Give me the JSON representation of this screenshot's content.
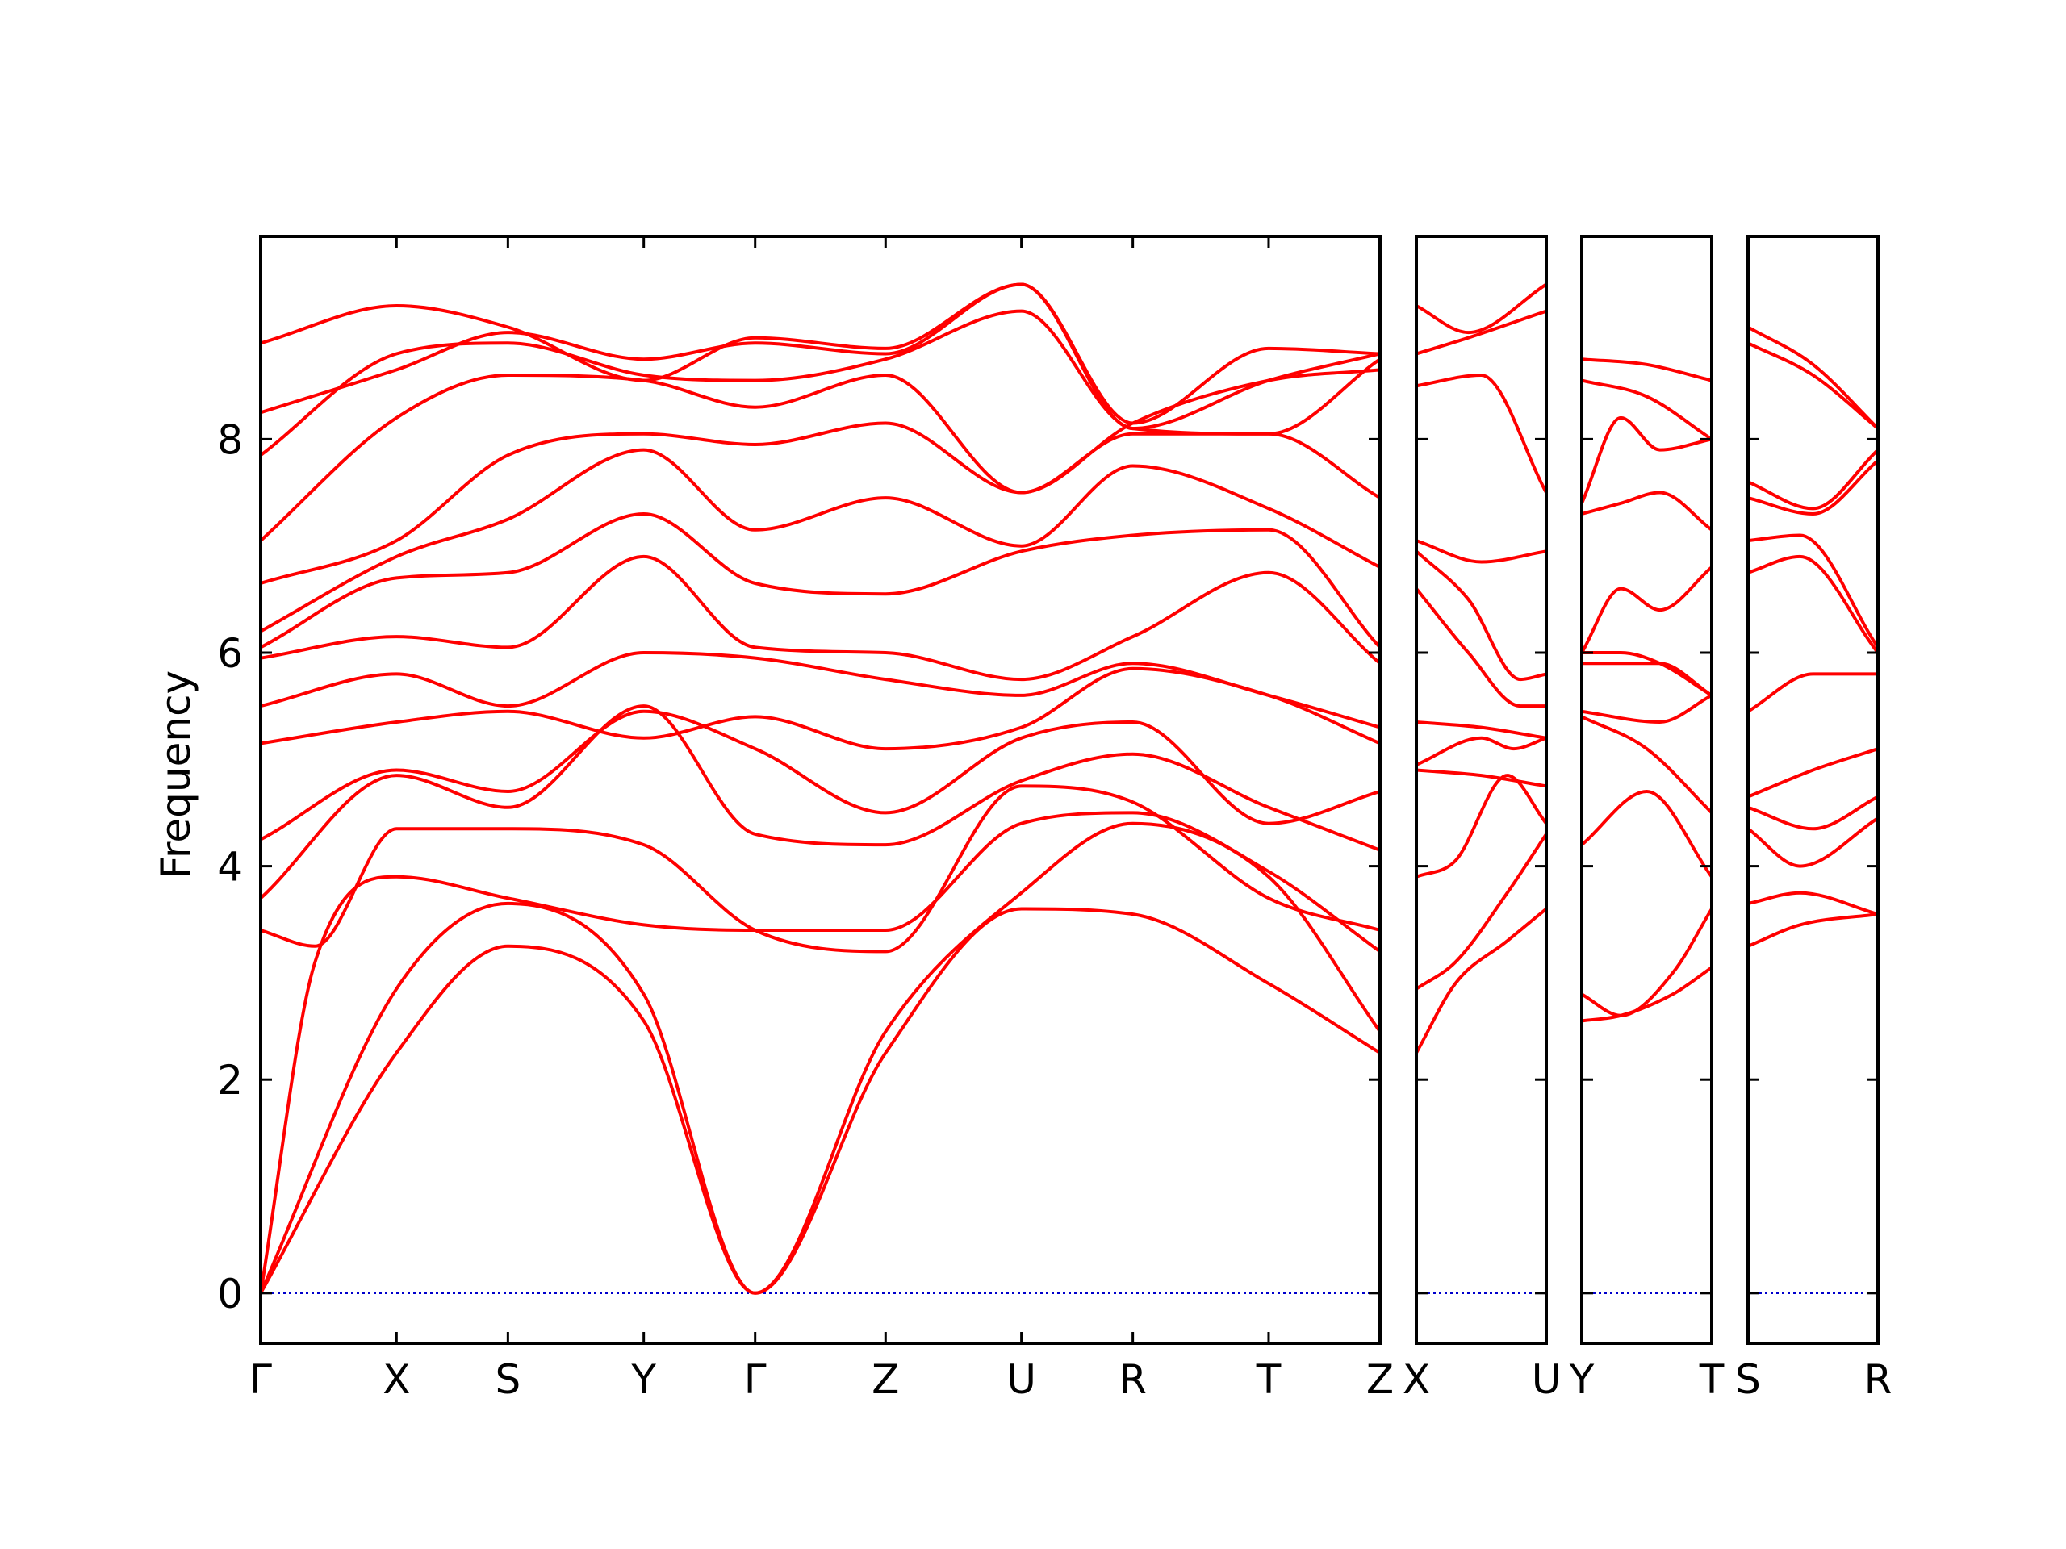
{
  "chart_data": {
    "type": "line",
    "title": "",
    "ylabel": "Frequency",
    "ylim": [
      -0.47,
      9.9
    ],
    "yticks": [
      0,
      2,
      4,
      6,
      8
    ],
    "colors": {
      "bands": "#ff0000",
      "zero_line": "#0000cc",
      "axes": "#000000"
    },
    "grid": false,
    "segments": [
      {
        "x_labels": [
          "Γ",
          "X",
          "S",
          "Y",
          "Γ",
          "Z",
          "U",
          "R",
          "T",
          "Z"
        ],
        "x": [
          0,
          1,
          1.82,
          2.82,
          3.64,
          4.6,
          5.6,
          6.42,
          7.42,
          8.24
        ],
        "series": [
          {
            "x": [
              0,
              1,
              1.82,
              2.82,
              3.64,
              4.6,
              5.6,
              6.42,
              7.42,
              8.24
            ],
            "values": [
              0,
              2.25,
              3.25,
              2.55,
              0,
              2.25,
              3.6,
              3.55,
              2.9,
              2.25
            ]
          },
          {
            "x": [
              0,
              1,
              1.82,
              2.82,
              3.64,
              4.6,
              5.6,
              6.42,
              7.42,
              8.24
            ],
            "values": [
              0,
              2.85,
              3.65,
              2.8,
              0,
              2.45,
              3.75,
              4.4,
              3.9,
              2.45
            ]
          },
          {
            "x": [
              0,
              0.4,
              1,
              1.82,
              2.82,
              3.64,
              4.6,
              5.6,
              6.42,
              7.42,
              8.24
            ],
            "values": [
              0,
              3.1,
              3.9,
              3.7,
              3.45,
              3.4,
              3.4,
              4.4,
              4.5,
              3.95,
              3.2
            ]
          },
          {
            "x": [
              0,
              0.4,
              1,
              1.82,
              2.82,
              3.64,
              4.6,
              5.6,
              6.42,
              7.42,
              8.24
            ],
            "values": [
              3.4,
              3.25,
              4.35,
              4.35,
              4.2,
              3.4,
              3.2,
              4.75,
              4.6,
              3.7,
              3.4
            ]
          },
          {
            "x": [
              0,
              1,
              1.82,
              2.82,
              3.64,
              4.6,
              5.6,
              6.42,
              7.42,
              8.24
            ],
            "values": [
              3.7,
              4.85,
              4.55,
              5.5,
              4.3,
              4.2,
              4.8,
              5.05,
              4.55,
              4.15
            ]
          },
          {
            "x": [
              0,
              1,
              1.82,
              2.82,
              3.64,
              4.6,
              5.6,
              6.42,
              7.42,
              8.24
            ],
            "values": [
              4.25,
              4.9,
              4.7,
              5.45,
              5.1,
              4.5,
              5.2,
              5.35,
              4.4,
              4.7
            ]
          },
          {
            "x": [
              0,
              1,
              1.82,
              2.82,
              3.64,
              4.6,
              5.6,
              6.42,
              7.42,
              8.24
            ],
            "values": [
              5.15,
              5.35,
              5.45,
              5.2,
              5.4,
              5.1,
              5.3,
              5.85,
              5.6,
              5.15
            ]
          },
          {
            "x": [
              0,
              1,
              1.82,
              2.82,
              3.64,
              4.6,
              5.6,
              6.42,
              7.42,
              8.24
            ],
            "values": [
              5.5,
              5.8,
              5.5,
              6.0,
              5.95,
              5.75,
              5.6,
              5.9,
              5.6,
              5.3
            ]
          },
          {
            "x": [
              0,
              1,
              1.82,
              2.82,
              3.64,
              4.6,
              5.6,
              6.42,
              7.42,
              8.24
            ],
            "values": [
              5.95,
              6.15,
              6.05,
              6.9,
              6.05,
              6.0,
              5.75,
              6.15,
              6.75,
              5.9
            ]
          },
          {
            "x": [
              0,
              1,
              1.82,
              2.82,
              3.64,
              4.6,
              5.6,
              6.42,
              7.42,
              8.24
            ],
            "values": [
              6.05,
              6.7,
              6.75,
              7.3,
              6.65,
              6.55,
              6.95,
              7.1,
              7.15,
              6.05
            ]
          },
          {
            "x": [
              0,
              1,
              1.82,
              2.82,
              3.64,
              4.6,
              5.6,
              6.42,
              7.42,
              8.24
            ],
            "values": [
              6.2,
              6.9,
              7.25,
              7.9,
              7.15,
              7.45,
              7.0,
              7.75,
              7.35,
              6.8
            ]
          },
          {
            "x": [
              0,
              1,
              1.82,
              2.82,
              3.64,
              4.6,
              5.6,
              6.42,
              7.42,
              8.24
            ],
            "values": [
              6.65,
              7.05,
              7.85,
              8.05,
              7.95,
              8.15,
              7.5,
              8.05,
              8.05,
              7.45
            ]
          },
          {
            "x": [
              0,
              1,
              1.82,
              2.82,
              3.64,
              4.6,
              5.6,
              6.42,
              7.42,
              8.24
            ],
            "values": [
              7.05,
              8.2,
              8.6,
              8.55,
              8.3,
              8.6,
              7.5,
              8.15,
              8.55,
              8.65
            ]
          },
          {
            "x": [
              0,
              1,
              1.82,
              2.82,
              3.64,
              4.6,
              5.6,
              6.42,
              7.42,
              8.24
            ],
            "values": [
              7.85,
              8.8,
              8.9,
              8.6,
              8.55,
              8.75,
              9.2,
              8.1,
              8.05,
              8.75
            ]
          },
          {
            "x": [
              0,
              1,
              1.82,
              2.82,
              3.64,
              4.6,
              5.6,
              6.42,
              7.42,
              8.24
            ],
            "values": [
              8.25,
              8.65,
              9.0,
              8.75,
              8.9,
              8.8,
              9.45,
              8.1,
              8.55,
              8.8
            ]
          },
          {
            "x": [
              0,
              1,
              1.82,
              2.82,
              3.64,
              4.6,
              5.6,
              6.42,
              7.42,
              8.24
            ],
            "values": [
              8.9,
              9.25,
              9.05,
              8.55,
              8.95,
              8.85,
              9.45,
              8.15,
              8.85,
              8.8
            ]
          }
        ]
      },
      {
        "x_labels": [
          "X",
          "U"
        ],
        "x": [
          0,
          1
        ],
        "series": [
          {
            "x": [
              0,
              0.3,
              0.7,
              1
            ],
            "values": [
              2.25,
              2.9,
              3.3,
              3.6
            ]
          },
          {
            "x": [
              0,
              0.3,
              0.7,
              1
            ],
            "values": [
              2.85,
              3.1,
              3.75,
              4.3
            ]
          },
          {
            "x": [
              0,
              0.3,
              0.7,
              1
            ],
            "values": [
              3.9,
              4.05,
              4.85,
              4.4
            ]
          },
          {
            "x": [
              0,
              0.5,
              1
            ],
            "values": [
              4.9,
              4.85,
              4.75
            ]
          },
          {
            "x": [
              0,
              0.5,
              0.75,
              1
            ],
            "values": [
              4.95,
              5.2,
              5.1,
              5.2
            ]
          },
          {
            "x": [
              0,
              0.5,
              1
            ],
            "values": [
              5.35,
              5.3,
              5.2
            ]
          },
          {
            "x": [
              0,
              0.4,
              0.8,
              1
            ],
            "values": [
              6.6,
              6.0,
              5.5,
              5.5
            ]
          },
          {
            "x": [
              0,
              0.4,
              0.8,
              1
            ],
            "values": [
              6.95,
              6.5,
              5.75,
              5.8
            ]
          },
          {
            "x": [
              0,
              0.5,
              1
            ],
            "values": [
              7.05,
              6.85,
              6.95
            ]
          },
          {
            "x": [
              0,
              0.5,
              1
            ],
            "values": [
              8.5,
              8.6,
              7.5
            ]
          },
          {
            "x": [
              0,
              0.4,
              1
            ],
            "values": [
              8.8,
              8.95,
              9.2
            ]
          },
          {
            "x": [
              0,
              0.4,
              1
            ],
            "values": [
              9.25,
              9.0,
              9.45
            ]
          }
        ]
      },
      {
        "x_labels": [
          "Y",
          "T"
        ],
        "x": [
          0,
          1
        ],
        "series": [
          {
            "x": [
              0,
              0.3,
              0.7,
              1
            ],
            "values": [
              2.55,
              2.6,
              2.8,
              3.05
            ]
          },
          {
            "x": [
              0,
              0.3,
              0.7,
              1
            ],
            "values": [
              2.8,
              2.6,
              3.0,
              3.6
            ]
          },
          {
            "x": [
              0,
              0.5,
              1
            ],
            "values": [
              4.2,
              4.7,
              3.9
            ]
          },
          {
            "x": [
              0,
              0.5,
              1
            ],
            "values": [
              5.4,
              5.1,
              4.5
            ]
          },
          {
            "x": [
              0,
              0.6,
              1
            ],
            "values": [
              5.45,
              5.35,
              5.6
            ]
          },
          {
            "x": [
              0,
              0.6,
              1
            ],
            "values": [
              5.9,
              5.9,
              5.6
            ]
          },
          {
            "x": [
              0,
              0.3,
              0.6,
              1
            ],
            "values": [
              6.0,
              6.0,
              5.9,
              5.6
            ]
          },
          {
            "x": [
              0,
              0.3,
              0.6,
              1
            ],
            "values": [
              6.0,
              6.6,
              6.4,
              6.8
            ]
          },
          {
            "x": [
              0,
              0.3,
              0.6,
              1
            ],
            "values": [
              7.3,
              7.4,
              7.5,
              7.15
            ]
          },
          {
            "x": [
              0,
              0.3,
              0.6,
              1
            ],
            "values": [
              7.4,
              8.2,
              7.9,
              8.0
            ]
          },
          {
            "x": [
              0,
              0.5,
              1
            ],
            "values": [
              8.55,
              8.4,
              8.0
            ]
          },
          {
            "x": [
              0,
              0.5,
              1
            ],
            "values": [
              8.75,
              8.7,
              8.55
            ]
          }
        ]
      },
      {
        "x_labels": [
          "S",
          "R"
        ],
        "x": [
          0,
          1
        ],
        "series": [
          {
            "x": [
              0,
              0.4,
              1
            ],
            "values": [
              3.25,
              3.45,
              3.55
            ]
          },
          {
            "x": [
              0,
              0.4,
              1
            ],
            "values": [
              3.65,
              3.75,
              3.55
            ]
          },
          {
            "x": [
              0,
              0.4,
              1
            ],
            "values": [
              4.35,
              4.0,
              4.45
            ]
          },
          {
            "x": [
              0,
              0.5,
              1
            ],
            "values": [
              4.55,
              4.35,
              4.65
            ]
          },
          {
            "x": [
              0,
              0.5,
              1
            ],
            "values": [
              4.65,
              4.9,
              5.1
            ]
          },
          {
            "x": [
              0,
              0.5,
              1
            ],
            "values": [
              5.45,
              5.8,
              5.8
            ]
          },
          {
            "x": [
              0,
              0.4,
              1
            ],
            "values": [
              6.75,
              6.9,
              6.0
            ]
          },
          {
            "x": [
              0,
              0.4,
              1
            ],
            "values": [
              7.05,
              7.1,
              6.05
            ]
          },
          {
            "x": [
              0,
              0.5,
              1
            ],
            "values": [
              7.45,
              7.3,
              7.8
            ]
          },
          {
            "x": [
              0,
              0.5,
              1
            ],
            "values": [
              7.6,
              7.35,
              7.9
            ]
          },
          {
            "x": [
              0,
              0.5,
              1
            ],
            "values": [
              8.9,
              8.6,
              8.1
            ]
          },
          {
            "x": [
              0,
              0.5,
              1
            ],
            "values": [
              9.05,
              8.7,
              8.1
            ]
          }
        ]
      }
    ]
  }
}
